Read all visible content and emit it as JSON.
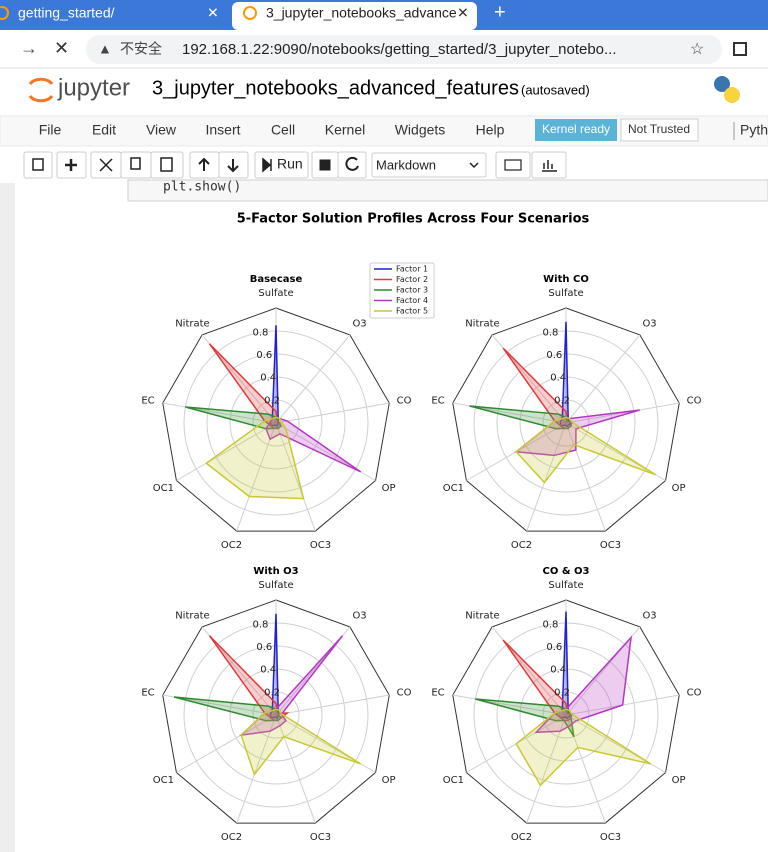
{
  "browser": {
    "tabs": [
      "getting_started/",
      "3_jupyter_notebooks_advance"
    ],
    "security_label": "不安全",
    "url": "192.168.1.22:9090/notebooks/getting_started/3_jupyter_notebo..."
  },
  "notebook": {
    "logo": "jupyter",
    "name": "3_jupyter_notebooks_advanced_features",
    "save_status": "(autosaved)",
    "menu": [
      "File",
      "Edit",
      "View",
      "Insert",
      "Cell",
      "Kernel",
      "Widgets",
      "Help"
    ],
    "kernel_status": "Kernel ready",
    "trust": "Not Trusted",
    "kernel_name": "Pyth",
    "run_button": "Run",
    "cell_type": "Markdown",
    "code_line": "plt.show()"
  },
  "figure_title": "5-Factor Solution Profiles Across Four Scenarios",
  "chart_data": [
    {
      "type": "radar",
      "title": "Basecase",
      "categories": [
        "Sulfate",
        "O3",
        "CO",
        "OP",
        "OC3",
        "OC2",
        "OC1",
        "EC",
        "Nitrate"
      ],
      "ylim": [
        0,
        1
      ],
      "yticks": [
        0.2,
        0.4,
        0.6,
        0.8
      ],
      "grid": true,
      "legend": "upper right",
      "series": [
        {
          "name": "Factor 1",
          "color": "#1f1fd6",
          "values": [
            0.85,
            0.03,
            0.02,
            0.02,
            0.03,
            0.02,
            0.05,
            0.05,
            0.05
          ]
        },
        {
          "name": "Factor 2",
          "color": "#e2393c",
          "values": [
            0.1,
            0.02,
            0.03,
            0.05,
            0.05,
            0.05,
            0.05,
            0.1,
            0.9
          ]
        },
        {
          "name": "Factor 3",
          "color": "#2f8a2f",
          "values": [
            0.05,
            0.02,
            0.02,
            0.05,
            0.05,
            0.05,
            0.1,
            0.8,
            0.1
          ]
        },
        {
          "name": "Factor 4",
          "color": "#b536c4",
          "values": [
            0.05,
            0.05,
            0.1,
            0.85,
            0.1,
            0.15,
            0.1,
            0.05,
            0.05
          ]
        },
        {
          "name": "Factor 5",
          "color": "#c9c932",
          "values": [
            0.05,
            0.05,
            0.05,
            0.1,
            0.7,
            0.68,
            0.7,
            0.1,
            0.05
          ]
        }
      ]
    },
    {
      "type": "radar",
      "title": "With CO",
      "categories": [
        "Sulfate",
        "O3",
        "CO",
        "OP",
        "OC3",
        "OC2",
        "OC1",
        "EC",
        "Nitrate"
      ],
      "ylim": [
        0,
        1
      ],
      "yticks": [
        0.2,
        0.4,
        0.6,
        0.8
      ],
      "grid": true,
      "series": [
        {
          "color": "#1f1fd6",
          "values": [
            0.88,
            0.03,
            0.05,
            0.03,
            0.03,
            0.02,
            0.05,
            0.05,
            0.05
          ]
        },
        {
          "color": "#e2393c",
          "values": [
            0.1,
            0.02,
            0.05,
            0.05,
            0.05,
            0.05,
            0.05,
            0.1,
            0.85
          ]
        },
        {
          "color": "#2f8a2f",
          "values": [
            0.05,
            0.02,
            0.05,
            0.05,
            0.05,
            0.05,
            0.1,
            0.85,
            0.1
          ]
        },
        {
          "color": "#b536c4",
          "values": [
            0.05,
            0.05,
            0.65,
            0.1,
            0.25,
            0.3,
            0.5,
            0.1,
            0.05
          ]
        },
        {
          "color": "#c9c932",
          "values": [
            0.05,
            0.05,
            0.05,
            0.9,
            0.2,
            0.55,
            0.5,
            0.1,
            0.05
          ]
        }
      ]
    },
    {
      "type": "radar",
      "title": "With O3",
      "categories": [
        "Sulfate",
        "O3",
        "CO",
        "OP",
        "OC3",
        "OC2",
        "OC1",
        "EC",
        "Nitrate"
      ],
      "ylim": [
        0,
        1
      ],
      "yticks": [
        0.2,
        0.4,
        0.6,
        0.8
      ],
      "grid": true,
      "series": [
        {
          "color": "#1f1fd6",
          "values": [
            0.88,
            0.03,
            0.02,
            0.02,
            0.03,
            0.02,
            0.05,
            0.05,
            0.05
          ]
        },
        {
          "color": "#e2393c",
          "values": [
            0.1,
            0.02,
            0.1,
            0.05,
            0.05,
            0.05,
            0.05,
            0.1,
            0.9
          ]
        },
        {
          "color": "#2f8a2f",
          "values": [
            0.05,
            0.02,
            0.02,
            0.05,
            0.05,
            0.05,
            0.1,
            0.9,
            0.1
          ]
        },
        {
          "color": "#b536c4",
          "values": [
            0.05,
            0.9,
            0.05,
            0.1,
            0.1,
            0.15,
            0.35,
            0.1,
            0.05
          ]
        },
        {
          "color": "#c9c932",
          "values": [
            0.05,
            0.05,
            0.05,
            0.85,
            0.2,
            0.55,
            0.35,
            0.1,
            0.05
          ]
        }
      ]
    },
    {
      "type": "radar",
      "title": "CO & O3",
      "categories": [
        "Sulfate",
        "O3",
        "CO",
        "OP",
        "OC3",
        "OC2",
        "OC1",
        "EC",
        "Nitrate"
      ],
      "ylim": [
        0,
        1
      ],
      "yticks": [
        0.2,
        0.4,
        0.6,
        0.8
      ],
      "grid": true,
      "series": [
        {
          "color": "#1f1fd6",
          "values": [
            0.9,
            0.03,
            0.05,
            0.03,
            0.03,
            0.02,
            0.05,
            0.1,
            0.05
          ]
        },
        {
          "color": "#e2393c",
          "values": [
            0.1,
            0.02,
            0.05,
            0.05,
            0.05,
            0.05,
            0.05,
            0.1,
            0.85
          ]
        },
        {
          "color": "#2f8a2f",
          "values": [
            0.05,
            0.02,
            0.05,
            0.05,
            0.2,
            0.05,
            0.1,
            0.8,
            0.1
          ]
        },
        {
          "color": "#b536c4",
          "values": [
            0.05,
            0.88,
            0.5,
            0.1,
            0.1,
            0.15,
            0.3,
            0.1,
            0.05
          ]
        },
        {
          "color": "#c9c932",
          "values": [
            0.05,
            0.05,
            0.05,
            0.85,
            0.3,
            0.65,
            0.5,
            0.1,
            0.05
          ]
        }
      ]
    }
  ]
}
